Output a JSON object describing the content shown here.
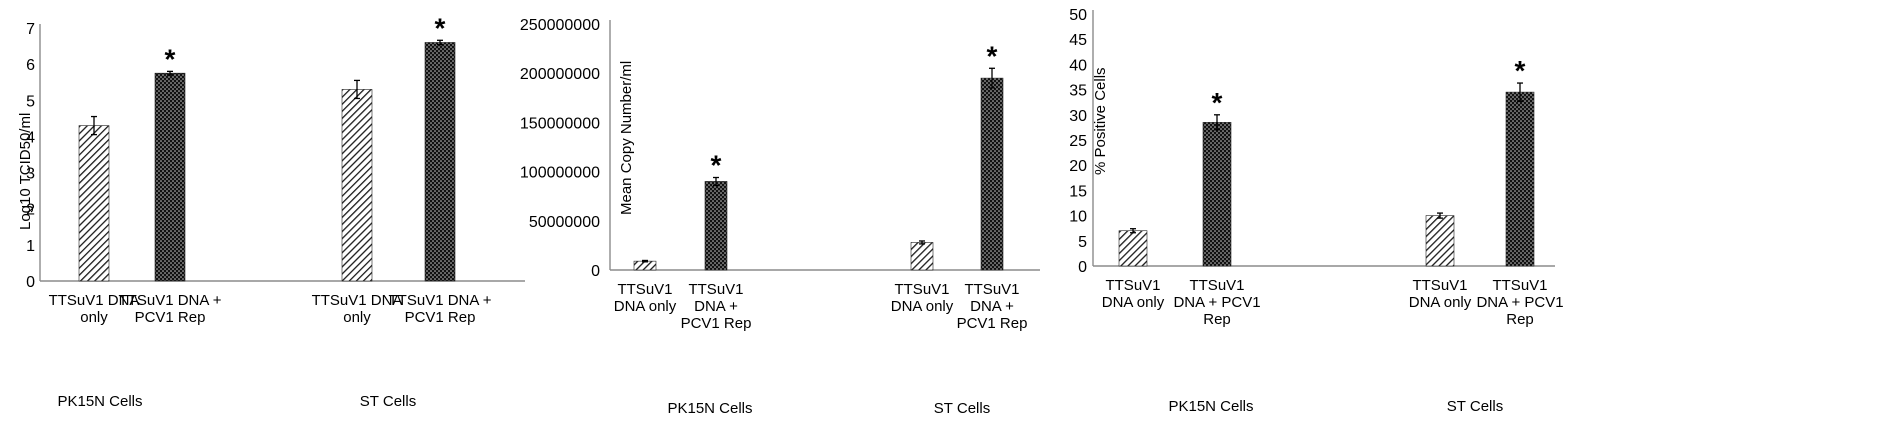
{
  "chart_data": [
    {
      "type": "bar",
      "ylabel": "Log10 TCID50/ml",
      "ylim": [
        0,
        7
      ],
      "yticks": [
        "0",
        "1",
        "2",
        "3",
        "4",
        "5",
        "6",
        "7"
      ],
      "groups": [
        {
          "name": "PK15N Cells",
          "categories": [
            "TTSuV1 DNA only",
            "TTSuV1 DNA + PCV1 Rep"
          ],
          "category_lines": [
            [
              "TTSuV1 DNA",
              "only"
            ],
            [
              "TTSuV1 DNA +",
              "PCV1 Rep"
            ]
          ],
          "values": [
            4.3,
            5.75
          ],
          "errors": [
            0.25,
            0.05
          ],
          "significant": [
            false,
            true
          ]
        },
        {
          "name": "ST Cells",
          "categories": [
            "TTSuV1 DNA only",
            "TTSuV1 DNA + PCV1 Rep"
          ],
          "category_lines": [
            [
              "TTSuV1 DNA",
              "only"
            ],
            [
              "TTSuV1 DNA +",
              "PCV1 Rep"
            ]
          ],
          "values": [
            5.3,
            6.6
          ],
          "errors": [
            0.25,
            0.06
          ],
          "significant": [
            false,
            true
          ]
        }
      ],
      "fills": [
        "hatch",
        "dots"
      ],
      "marker": "*"
    },
    {
      "type": "bar",
      "ylabel": "Mean Copy Number/ml",
      "ylim": [
        0,
        250000000
      ],
      "yticks": [
        "0",
        "50000000",
        "100000000",
        "150000000",
        "200000000",
        "250000000"
      ],
      "groups": [
        {
          "name": "PK15N Cells",
          "categories": [
            "TTSuV1 DNA only",
            "TTSuV1 DNA + PCV1 Rep"
          ],
          "category_lines": [
            [
              "TTSuV1",
              "DNA only"
            ],
            [
              "TTSuV1",
              "DNA +",
              "PCV1 Rep"
            ]
          ],
          "values": [
            9000000,
            90000000
          ],
          "errors": [
            700000,
            4000000
          ],
          "significant": [
            false,
            true
          ]
        },
        {
          "name": "ST Cells",
          "categories": [
            "TTSuV1 DNA only",
            "TTSuV1 DNA + PCV1 Rep"
          ],
          "category_lines": [
            [
              "TTSuV1",
              "DNA only"
            ],
            [
              "TTSuV1",
              "DNA +",
              "PCV1 Rep"
            ]
          ],
          "values": [
            28000000,
            195000000
          ],
          "errors": [
            1500000,
            10000000
          ],
          "significant": [
            false,
            true
          ]
        }
      ],
      "fills": [
        "hatch",
        "dots"
      ],
      "marker": "*"
    },
    {
      "type": "bar",
      "ylabel": "% Positive Cells",
      "ylim": [
        0,
        50
      ],
      "yticks": [
        "0",
        "5",
        "10",
        "15",
        "20",
        "25",
        "30",
        "35",
        "40",
        "45",
        "50"
      ],
      "groups": [
        {
          "name": "PK15N Cells",
          "categories": [
            "TTSuV1 DNA only",
            "TTSuV1 DNA + PCV1 Rep"
          ],
          "category_lines": [
            [
              "TTSuV1",
              "DNA only"
            ],
            [
              "TTSuV1",
              "DNA + PCV1",
              "Rep"
            ]
          ],
          "values": [
            7,
            28.5
          ],
          "errors": [
            0.4,
            1.5
          ],
          "significant": [
            false,
            true
          ]
        },
        {
          "name": "ST Cells",
          "categories": [
            "TTSuV1 DNA only",
            "TTSuV1 DNA + PCV1 Rep"
          ],
          "category_lines": [
            [
              "TTSuV1",
              "DNA only"
            ],
            [
              "TTSuV1",
              "DNA + PCV1",
              "Rep"
            ]
          ],
          "values": [
            10,
            34.5
          ],
          "errors": [
            0.5,
            1.8
          ],
          "significant": [
            false,
            true
          ]
        }
      ],
      "fills": [
        "hatch",
        "dots"
      ],
      "marker": "*"
    }
  ]
}
